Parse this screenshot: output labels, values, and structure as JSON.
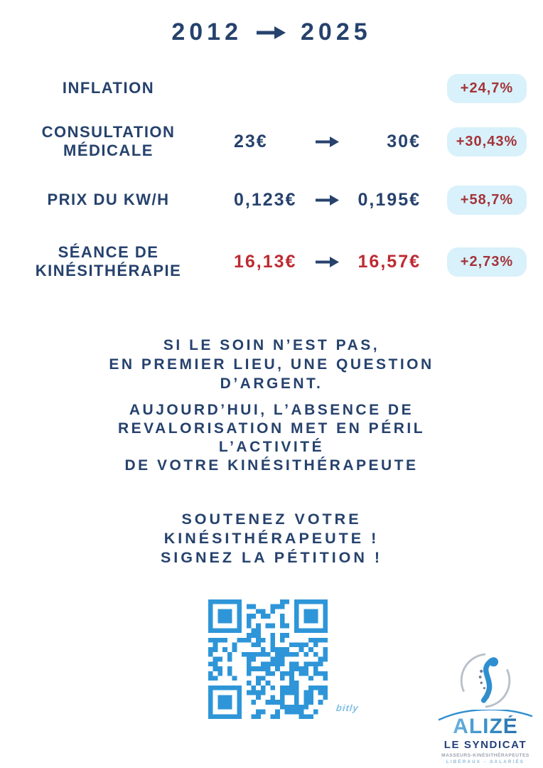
{
  "title": {
    "from": "2012",
    "to": "2025"
  },
  "colors": {
    "navy": "#26426d",
    "badge_bg": "#d8f1fa",
    "badge_red": "#a43339",
    "value_red": "#bd2b32",
    "qr_blue": "#2e96d8"
  },
  "rows": [
    {
      "label": "INFLATION",
      "from": "",
      "to": "",
      "badge": "+24,7%"
    },
    {
      "label": "CONSULTATION\nMÉDICALE",
      "from": "23€",
      "to": "30€",
      "badge": "+30,43%"
    },
    {
      "label": "PRIX DU KW/H",
      "from": "0,123€",
      "to": "0,195€",
      "badge": "+58,7%"
    },
    {
      "label": "SÉANCE DE\nKINÉSITHÉRAPIE",
      "from": "16,13€",
      "to": "16,57€",
      "badge": "+2,73%"
    }
  ],
  "messages": {
    "p1": "SI LE SOIN N’EST PAS,\nEN PREMIER LIEU, UNE QUESTION\nD’ARGENT.",
    "p2": "AUJOURD’HUI, L’ABSENCE DE\nREVALORISATION MET EN PÉRIL\nL’ACTIVITÉ\nDE VOTRE KINÉSITHÉRAPEUTE",
    "p3": "SOUTENEZ VOTRE\nKINÉSITHÉRAPEUTE !\nSIGNEZ LA PÉTITION !"
  },
  "qr": {
    "watermark": "bitly",
    "color": "#2e96d8"
  },
  "logo": {
    "name": "ALIZÉ",
    "subtitle": "LE SYNDICAT",
    "line1": "MASSEURS-KINÉSITHÉRAPEUTES",
    "line2": "LIBÉRAUX - SALARIÉS"
  }
}
